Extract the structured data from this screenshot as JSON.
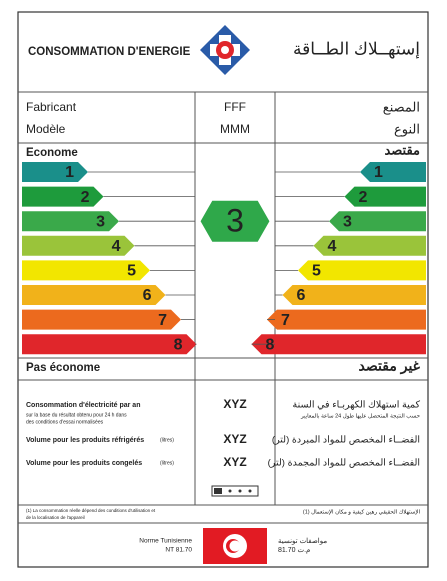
{
  "header": {
    "title_fr": "CONSOMMATION D'ENERGIE",
    "title_ar": "إستهــلاك الطــاقة"
  },
  "rows": [
    {
      "label_fr": "Fabricant",
      "value": "FFF",
      "label_ar": "المصنع"
    },
    {
      "label_fr": "Modèle",
      "value": "MMM",
      "label_ar": "النوع"
    }
  ],
  "scale": {
    "top_fr": "Econome",
    "top_ar": "مقتصد",
    "bottom_fr": "Pas économe",
    "bottom_ar": "غير مقتصد",
    "classes": [
      {
        "label": "1",
        "color": "#1a8f8a"
      },
      {
        "label": "2",
        "color": "#1e9b3c"
      },
      {
        "label": "3",
        "color": "#3aa94a"
      },
      {
        "label": "4",
        "color": "#9ac43a"
      },
      {
        "label": "5",
        "color": "#f2e600"
      },
      {
        "label": "6",
        "color": "#f1b21a"
      },
      {
        "label": "7",
        "color": "#ec6a1e"
      },
      {
        "label": "8",
        "color": "#e0262b"
      }
    ],
    "rating": {
      "label": "3",
      "color": "#2fa84a"
    }
  },
  "consumption": [
    {
      "label_fr": "Consommation d'électricité par an",
      "note_fr": [
        "sur la base du résultat obtenu pour 24 h dans",
        "des conditions d'essai normalisées"
      ],
      "value": "XYZ",
      "label_ar": "كمية استهلاك الكهربـاء في السنة",
      "note_ar": [
        "حسب النتيجة المتحصل عليها طول 24 ساعة بالمعايير"
      ]
    },
    {
      "label_fr": "Volume pour les produits réfrigérés",
      "note_fr": [
        "(litres)"
      ],
      "value": "XYZ",
      "label_ar": "الفضــاء المخصص للمواد المبردة (لتر)",
      "note_ar": []
    },
    {
      "label_fr": "Volume pour les produits congelés",
      "note_fr": [
        "(litres)"
      ],
      "value": "XYZ",
      "label_ar": "الفضــاء المخصص للمواد المجمدة (لتر)",
      "note_ar": []
    }
  ],
  "footnote_fr": [
    "(1) La consommation réelle dépend des conditions d'utilisation et",
    "de la localisation de l'appareil"
  ],
  "footnote_ar": "(1) الإستهلاك الحقيقي رهين كيفية و مكان الإستعمال",
  "footer": {
    "norm_fr": [
      "Norme Tunisienne",
      "NT 81.70"
    ],
    "norm_ar": [
      "مواصفات تونسية",
      "م.ت 81.70"
    ]
  }
}
